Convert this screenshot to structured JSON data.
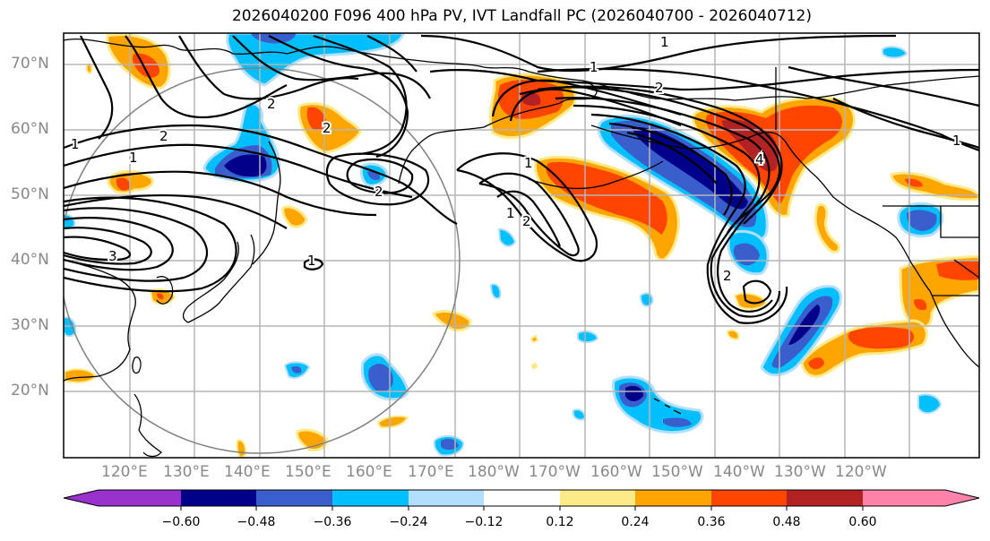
{
  "title": "2026040200 F096 400 hPa PV, IVT Landfall PC (2026040700 - 2026040712)",
  "latitude_labels": [
    "70°N",
    "60°N",
    "50°N",
    "40°N",
    "30°N",
    "20°N"
  ],
  "longitude_labels": [
    "120°E",
    "130°E",
    "140°E",
    "150°E",
    "160°E",
    "170°E",
    "180°W",
    "170°W",
    "160°W",
    "150°W",
    "140°W",
    "130°W",
    "120°W"
  ],
  "colorbar": {
    "ticks": [
      "−0.60",
      "−0.48",
      "−0.36",
      "−0.24",
      "−0.12",
      "0.12",
      "0.24",
      "0.36",
      "0.48",
      "0.60"
    ],
    "colors": [
      "#9932cc",
      "#00008b",
      "#3a5fcd",
      "#00bfff",
      "#b2dffe",
      "#ffffff",
      "#ffea8a",
      "#ffa500",
      "#ff4500",
      "#b22222",
      "#ff82ab"
    ],
    "extend": "both"
  },
  "contour_labels": [
    "1",
    "2",
    "1",
    "2",
    "1",
    "2",
    "1",
    "2",
    "1",
    "2",
    "3",
    "1",
    "1",
    "2",
    "4",
    "2",
    "1"
  ],
  "colors": {
    "grid": "#b5b5b5",
    "coast": "#000000",
    "contour": "#000000",
    "ring": "#808080",
    "axis_label": "#888888"
  }
}
